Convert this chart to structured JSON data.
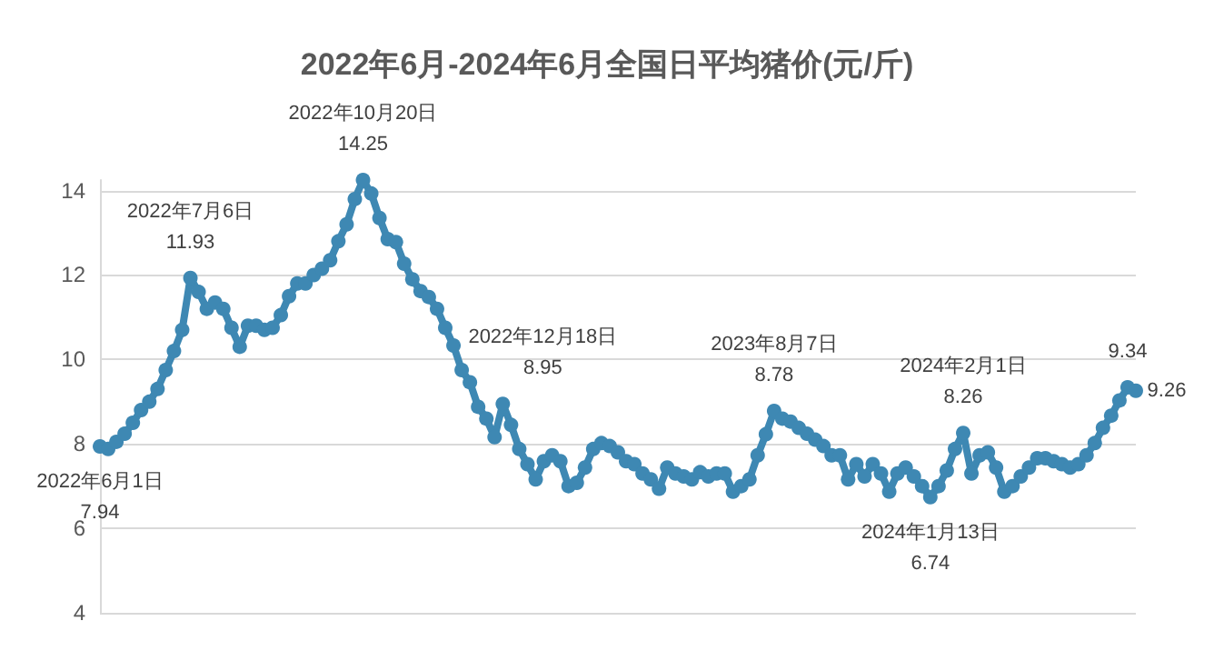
{
  "chart_data": {
    "type": "line",
    "title": "2022年6月-2024年6月全国日平均猪价(元/斤)",
    "categories": [
      null,
      null,
      null,
      null,
      null,
      null,
      null,
      null,
      null,
      null,
      null,
      null,
      null,
      null,
      null,
      null,
      null,
      null,
      null,
      null,
      null,
      null,
      null,
      null,
      null,
      null,
      null,
      null,
      null,
      null,
      null,
      null,
      null,
      null,
      null,
      null,
      null,
      null,
      null,
      null,
      null,
      null,
      null,
      null,
      null,
      null,
      null,
      null,
      null,
      null,
      null,
      null,
      null,
      null,
      null,
      null,
      null,
      null,
      null,
      null,
      null,
      null,
      null,
      null,
      null,
      null,
      null,
      null,
      null,
      null,
      null,
      null,
      null,
      null,
      null,
      null,
      null,
      null,
      null,
      null,
      null,
      null,
      null,
      null,
      null,
      null,
      null,
      null,
      null,
      null,
      null,
      null,
      null,
      null,
      null,
      null,
      null,
      null,
      null,
      null,
      null,
      null,
      null,
      null,
      null,
      null,
      null,
      null,
      null,
      null,
      null,
      null,
      null,
      null,
      null,
      null,
      null,
      null,
      null,
      null,
      null,
      null,
      null,
      null,
      null,
      null,
      null
    ],
    "series": [
      {
        "color": "#3e88b3",
        "values": [
          7.94,
          7.88,
          8.05,
          8.24,
          8.5,
          8.8,
          9.0,
          9.3,
          9.75,
          10.2,
          10.7,
          11.93,
          11.6,
          11.2,
          11.35,
          11.2,
          10.75,
          10.3,
          10.8,
          10.8,
          10.7,
          10.75,
          11.05,
          11.5,
          11.8,
          11.8,
          12.0,
          12.15,
          12.35,
          12.8,
          13.2,
          13.8,
          14.25,
          13.93,
          13.35,
          12.85,
          12.78,
          12.27,
          11.9,
          11.62,
          11.48,
          11.2,
          10.75,
          10.33,
          9.75,
          9.46,
          8.88,
          8.6,
          8.16,
          8.95,
          8.45,
          7.88,
          7.52,
          7.16,
          7.59,
          7.73,
          7.59,
          7.0,
          7.08,
          7.44,
          7.88,
          8.02,
          7.95,
          7.8,
          7.59,
          7.52,
          7.3,
          7.16,
          6.94,
          7.44,
          7.3,
          7.23,
          7.16,
          7.33,
          7.23,
          7.3,
          7.3,
          6.87,
          7.0,
          7.16,
          7.73,
          8.23,
          8.78,
          8.6,
          8.53,
          8.38,
          8.24,
          8.1,
          7.95,
          7.73,
          7.73,
          7.16,
          7.52,
          7.23,
          7.52,
          7.3,
          6.87,
          7.3,
          7.44,
          7.23,
          7.0,
          6.74,
          7.0,
          7.37,
          7.88,
          8.26,
          7.3,
          7.73,
          7.8,
          7.44,
          6.87,
          7.0,
          7.23,
          7.44,
          7.66,
          7.66,
          7.59,
          7.52,
          7.44,
          7.52,
          7.73,
          8.02,
          8.38,
          8.67,
          9.03,
          9.34,
          9.26
        ],
        "value_labels": [
          "7.94",
          null,
          null,
          null,
          null,
          null,
          null,
          null,
          null,
          null,
          null,
          "11.93",
          null,
          null,
          null,
          null,
          null,
          null,
          null,
          null,
          null,
          null,
          null,
          null,
          null,
          null,
          null,
          null,
          null,
          null,
          null,
          null,
          "14.25",
          null,
          null,
          null,
          null,
          null,
          null,
          null,
          null,
          null,
          null,
          null,
          null,
          null,
          null,
          null,
          null,
          "8.95",
          null,
          null,
          null,
          null,
          null,
          null,
          null,
          null,
          null,
          null,
          null,
          null,
          null,
          null,
          null,
          null,
          null,
          null,
          null,
          null,
          null,
          null,
          null,
          null,
          null,
          null,
          null,
          null,
          null,
          null,
          null,
          null,
          "8.78",
          null,
          null,
          null,
          null,
          null,
          null,
          null,
          null,
          null,
          null,
          null,
          null,
          null,
          null,
          null,
          null,
          null,
          null,
          "6.74",
          null,
          null,
          null,
          "8.26",
          null,
          null,
          null,
          null,
          null,
          null,
          null,
          null,
          null,
          null,
          null,
          null,
          null,
          null,
          null,
          null,
          null,
          null,
          null,
          "9.34",
          "9.26"
        ]
      }
    ],
    "annotations": [
      {
        "text": "2022年6月1日",
        "y": 7.94
      },
      {
        "text": "2022年7月6日",
        "y": 11.93
      },
      {
        "text": "2022年10月20日",
        "y": 14.25
      },
      "2022年12月18日",
      {
        "text": "2023年8月7日",
        "y": 8.78
      },
      {
        "text": "2024年1月13日",
        "y": 6.74
      },
      {
        "text": "2024年2月1日",
        "y": 8.26
      }
    ],
    "ylim": [
      4,
      14.25
    ],
    "yticks": [
      4,
      6,
      8,
      10,
      12,
      14
    ],
    "grid": "y",
    "marker": "circle"
  }
}
